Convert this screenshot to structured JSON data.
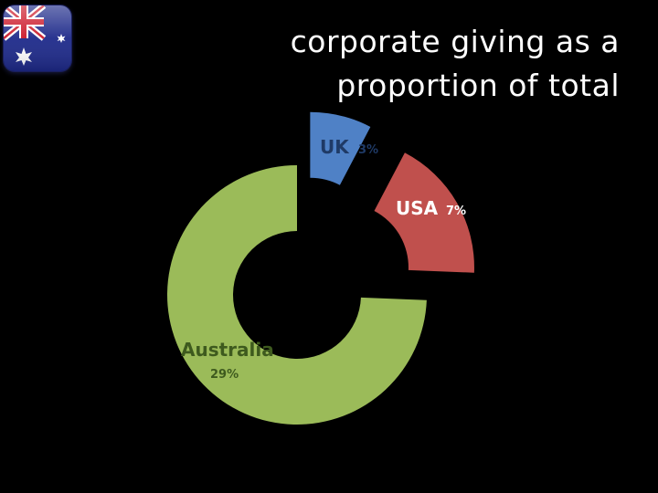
{
  "title_lines": [
    "corporate giving as a",
    "proportion of total"
  ],
  "flag": {
    "icon": "australia-flag-icon",
    "colors": {
      "blue": "#1e2a8a",
      "red": "#cc1a2a",
      "white": "#ffffff"
    }
  },
  "chart_data": {
    "type": "pie",
    "style": "donut",
    "slices": [
      {
        "name": "UK",
        "value": 3,
        "label": "3%",
        "color": "#4f81c6",
        "label_color": "#1f3a66",
        "exploded": true
      },
      {
        "name": "USA",
        "value": 7,
        "label": "7%",
        "color": "#c0504d",
        "label_color": "#ffffff",
        "exploded": true
      },
      {
        "name": "Australia",
        "value": 29,
        "label": "29%",
        "color": "#9bbb59",
        "label_color": "#3e5a1e",
        "exploded": false
      }
    ],
    "legend": "none"
  }
}
